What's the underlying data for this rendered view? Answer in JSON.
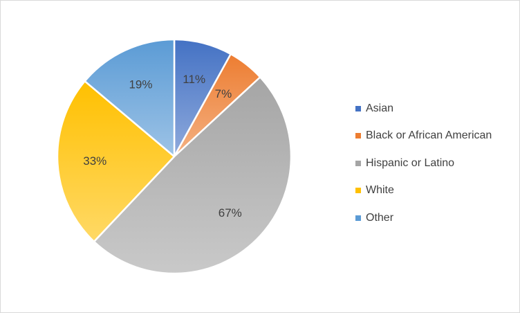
{
  "chart_data": {
    "type": "pie",
    "title": "",
    "legend_position": "right",
    "slices": [
      {
        "name": "Asian",
        "label": "11%",
        "value": 11,
        "color": "#4472c4"
      },
      {
        "name": "Black or African American",
        "label": "7%",
        "value": 7,
        "color": "#ed7d31"
      },
      {
        "name": "Hispanic or Latino",
        "label": "67%",
        "value": 67,
        "color": "#a5a5a5"
      },
      {
        "name": "White",
        "label": "33%",
        "value": 33,
        "color": "#ffc000"
      },
      {
        "name": "Other",
        "label": "19%",
        "value": 19,
        "color": "#5b9bd5"
      }
    ]
  }
}
